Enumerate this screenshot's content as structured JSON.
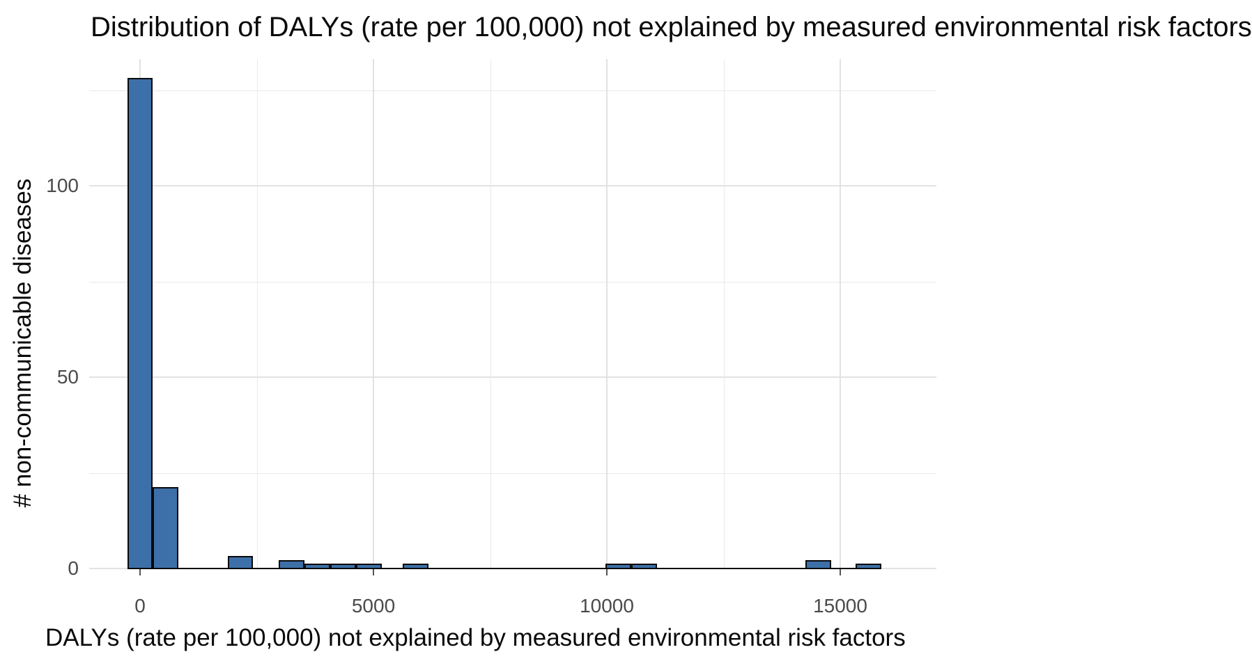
{
  "title": "Distribution of DALYs (rate per 100,000) not explained by measured environmental risk factors",
  "axes": {
    "x": {
      "label": "DALYs (rate per 100,000) not explained by measured environmental risk factors",
      "ticks": [
        {
          "value": 0,
          "label": "0"
        },
        {
          "value": 5000,
          "label": "5000"
        },
        {
          "value": 10000,
          "label": "10000"
        },
        {
          "value": 15000,
          "label": "15000"
        }
      ],
      "minor_gridlines": [
        2500,
        7500,
        12500
      ]
    },
    "y": {
      "label": "# non-communicable diseases",
      "ticks": [
        {
          "value": 0,
          "label": "0"
        },
        {
          "value": 50,
          "label": "50"
        },
        {
          "value": 100,
          "label": "100"
        }
      ],
      "minor_gridlines": [
        25,
        75,
        125
      ]
    }
  },
  "chart_data": {
    "type": "bar",
    "subtype": "histogram",
    "title": "Distribution of DALYs (rate per 100,000) not explained by measured environmental risk factors",
    "xlabel": "DALYs (rate per 100,000) not explained by measured environmental risk factors",
    "ylabel": "# non-communicable diseases",
    "xlim": [
      -1090,
      17060
    ],
    "ylim": [
      0,
      133
    ],
    "x_ticks": [
      0,
      5000,
      10000,
      15000
    ],
    "y_ticks": [
      0,
      50,
      100
    ],
    "grid": "major-and-minor",
    "legend": "none",
    "bin_width": 550,
    "baseline_range": [
      -275,
      15875
    ],
    "bins": [
      {
        "x0": -275,
        "x1": 275,
        "count": 128
      },
      {
        "x0": 275,
        "x1": 825,
        "count": 21
      },
      {
        "x0": 1875,
        "x1": 2425,
        "count": 3
      },
      {
        "x0": 2975,
        "x1": 3525,
        "count": 2
      },
      {
        "x0": 3525,
        "x1": 4075,
        "count": 1
      },
      {
        "x0": 4075,
        "x1": 4625,
        "count": 1
      },
      {
        "x0": 4625,
        "x1": 5175,
        "count": 1
      },
      {
        "x0": 5625,
        "x1": 6175,
        "count": 1
      },
      {
        "x0": 9975,
        "x1": 10525,
        "count": 1
      },
      {
        "x0": 10525,
        "x1": 11075,
        "count": 1
      },
      {
        "x0": 14250,
        "x1": 14800,
        "count": 2
      },
      {
        "x0": 15325,
        "x1": 15875,
        "count": 1
      }
    ],
    "colors": {
      "bar_fill": "#3D70A8",
      "bar_border": "#0A0A0A",
      "gridline_major": "#E2E2E2",
      "gridline_minor": "#E9E9E9",
      "tick_text": "#4A4A4A",
      "title_text": "#0A0A0A",
      "background": "#FFFFFF"
    }
  }
}
